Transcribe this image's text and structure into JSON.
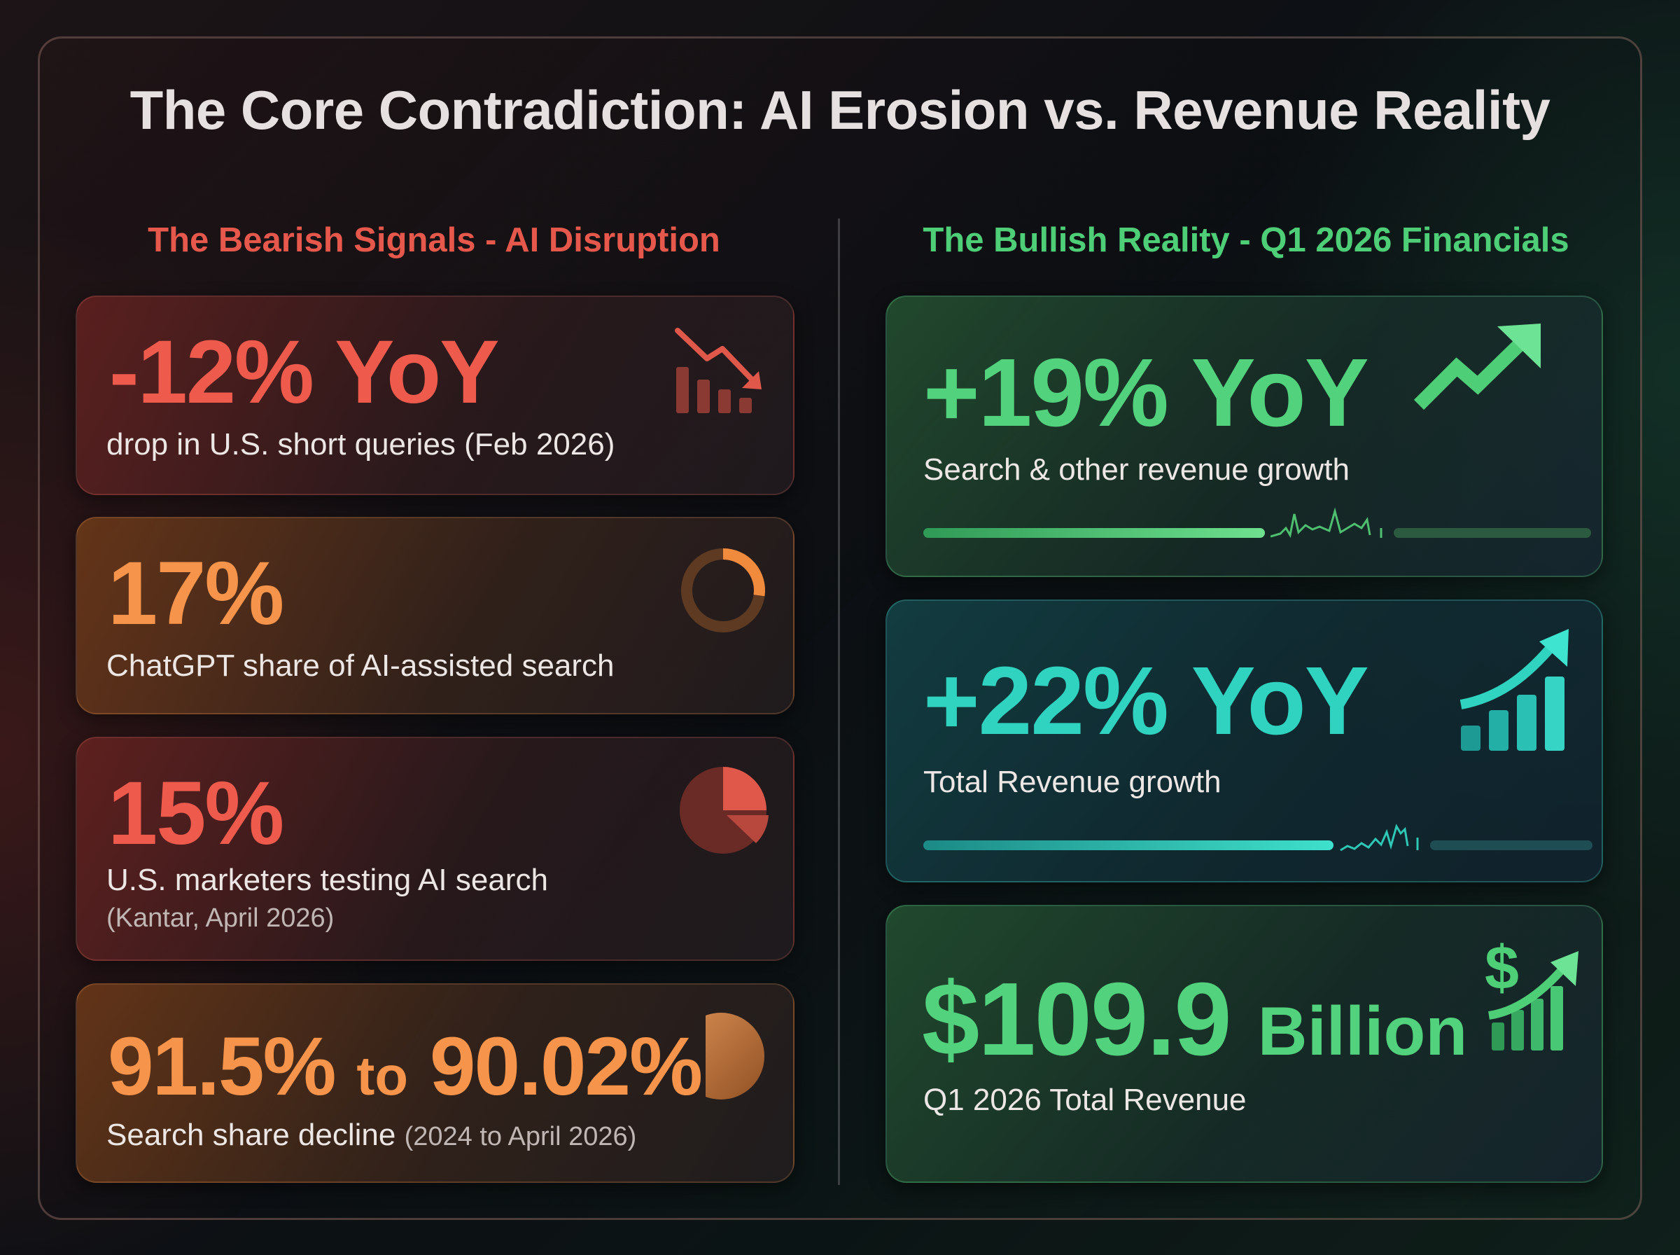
{
  "title": "The Core Contradiction: AI Erosion vs. Revenue Reality",
  "left_heading": "The Bearish Signals - AI Disruption",
  "right_heading": "The Bullish Reality - Q1 2026 Financials",
  "colors": {
    "bearish_red": "#e5584b",
    "bearish_orange": "#f5944a",
    "bullish_green": "#4fce78",
    "bullish_teal": "#2fd3c0"
  },
  "bearish_cards": [
    {
      "value": "-12% YoY",
      "label": "drop in U.S. short queries (Feb 2026)",
      "icon": "declining-bars-icon"
    },
    {
      "value": "17%",
      "label": "ChatGPT share of AI-assisted search",
      "icon": "ring-progress-icon",
      "share": 17
    },
    {
      "value": "15%",
      "label": "U.S. marketers testing AI search",
      "note": "(Kantar, April 2026)",
      "icon": "pie-slice-icon",
      "share": 15
    },
    {
      "value_from": "91.5%",
      "value_to_word": "to",
      "value_to": "90.02%",
      "label": "Search share decline",
      "note": "(2024 to April 2026)",
      "icon": "half-circle-icon"
    }
  ],
  "bullish_cards": [
    {
      "value": "+19% YoY",
      "label": "Search & other revenue growth",
      "icon": "trend-up-arrow-icon"
    },
    {
      "value": "+22% YoY",
      "label": "Total Revenue growth",
      "icon": "rising-bars-arrow-icon"
    },
    {
      "value_number": "$109.9",
      "value_unit": "Billion",
      "label": "Q1 2026 Total Revenue",
      "icon": "dollar-growth-icon"
    }
  ]
}
